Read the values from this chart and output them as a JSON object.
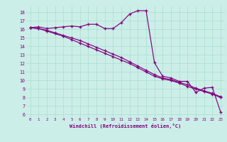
{
  "xlabel": "Windchill (Refroidissement éolien,°C)",
  "background_color": "#cceee8",
  "grid_color": "#aaddcc",
  "line_color": "#800080",
  "xtick_labels": [
    "0",
    "1",
    "2",
    "3",
    "4",
    "5",
    "6",
    "7",
    "8",
    "9",
    "10",
    "11",
    "12",
    "13",
    "14",
    "15",
    "16",
    "17",
    "18",
    "19",
    "20",
    "21",
    "22",
    "23"
  ],
  "ytick_labels": [
    "6",
    "7",
    "8",
    "9",
    "10",
    "11",
    "12",
    "13",
    "14",
    "15",
    "16",
    "17",
    "18"
  ],
  "series1": [
    16.2,
    16.3,
    16.1,
    16.2,
    16.3,
    16.4,
    16.3,
    16.6,
    16.6,
    16.1,
    16.1,
    16.8,
    17.8,
    18.2,
    18.2,
    12.1,
    10.5,
    10.3,
    9.9,
    9.9,
    8.6,
    9.1,
    9.2,
    6.3
  ],
  "series2": [
    16.2,
    16.1,
    15.8,
    15.5,
    15.2,
    14.8,
    14.4,
    14.0,
    13.6,
    13.2,
    12.8,
    12.4,
    12.0,
    11.5,
    11.0,
    10.5,
    10.2,
    10.0,
    9.7,
    9.3,
    9.0,
    8.7,
    8.4,
    8.0
  ],
  "series3": [
    16.2,
    16.1,
    15.9,
    15.6,
    15.3,
    15.0,
    14.7,
    14.3,
    13.9,
    13.5,
    13.1,
    12.7,
    12.2,
    11.7,
    11.2,
    10.7,
    10.3,
    10.1,
    9.8,
    9.5,
    9.1,
    8.8,
    8.5,
    8.1
  ]
}
